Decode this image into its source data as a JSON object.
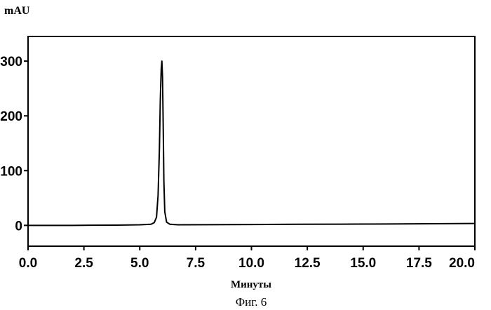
{
  "caption": "Фиг. 6",
  "chart_data": {
    "type": "line",
    "ylabel": "mAU",
    "xlabel": "Минуты",
    "xlim": [
      0.0,
      20.0
    ],
    "ylim": [
      -38,
      345
    ],
    "xticks": [
      "0.0",
      "2.5",
      "5.0",
      "7.5",
      "10.0",
      "12.5",
      "15.0",
      "17.5",
      "20.0"
    ],
    "yticks": [
      "0",
      "100",
      "200",
      "300"
    ],
    "grid": false,
    "series": [
      {
        "x": [
          0.0,
          2.0,
          4.0,
          5.0,
          5.5,
          5.65,
          5.75,
          5.82,
          5.88,
          5.92,
          5.96,
          5.99,
          6.02,
          6.05,
          6.08,
          6.12,
          6.2,
          6.35,
          6.7,
          8.0,
          10.0,
          12.0,
          14.0,
          16.0,
          18.0,
          20.0
        ],
        "y": [
          0,
          0,
          0.5,
          1,
          2,
          5,
          15,
          55,
          140,
          230,
          285,
          300,
          270,
          180,
          80,
          25,
          6,
          2,
          1,
          1.2,
          1.5,
          2,
          2.2,
          2.5,
          3,
          3.5
        ]
      }
    ]
  }
}
